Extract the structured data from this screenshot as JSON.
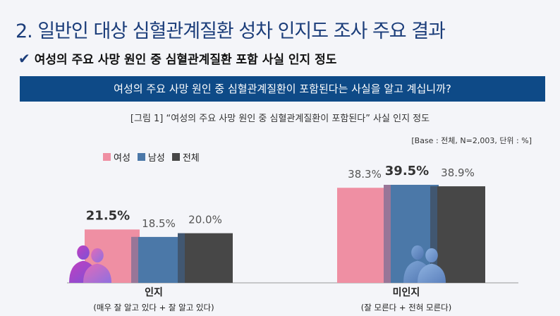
{
  "header": {
    "page_title": "2. 일반인 대상 심혈관계질환 성차 인지도 조사 주요 결과",
    "subtitle": "여성의 주요 사망 원인 중 심혈관계질환 포함 사실 인지 정도",
    "check_icon": "check-icon"
  },
  "question": "여성의 주요 사망 원인 중 심혈관계질환이 포함된다는 사실을 알고 계십니까?",
  "chart_data": {
    "type": "bar",
    "title": "[그림 1] “여성의 주요 사망 원인 중 심혈관계질환이 포함된다” 사실 인지 정도",
    "base_note": "[Base : 전체, N=2,003, 단위 : %]",
    "categories": [
      "인지",
      "미인지"
    ],
    "category_notes": [
      "(매우 잘 알고 있다 + 잘 알고 있다)",
      "(잘 모른다 + 전혀 모른다)"
    ],
    "series": [
      {
        "name": "여성",
        "color": "#ef8fa3",
        "values": [
          21.5,
          38.3
        ],
        "labels": [
          "21.5%",
          "38.3%"
        ]
      },
      {
        "name": "남성",
        "color": "#4b78a8",
        "values": [
          18.5,
          39.5
        ],
        "labels": [
          "18.5%",
          "39.5%"
        ]
      },
      {
        "name": "전체",
        "color": "#474747",
        "values": [
          20.0,
          38.9
        ],
        "labels": [
          "20.0%",
          "38.9%"
        ]
      }
    ],
    "highlight_labels": [
      [
        0,
        0
      ],
      [
        1,
        1
      ]
    ],
    "ylim": [
      0,
      40
    ],
    "grid": false,
    "legend_position": "top-left"
  }
}
